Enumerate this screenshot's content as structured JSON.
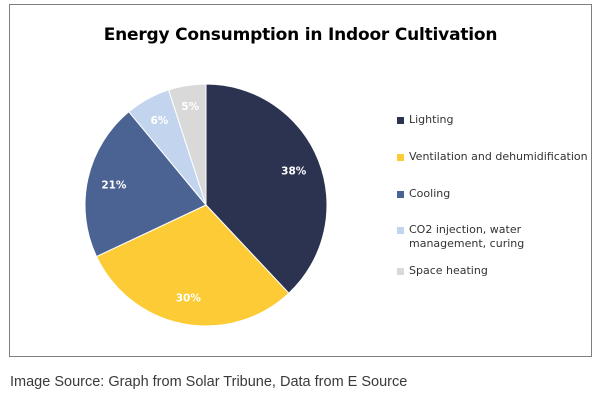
{
  "chart_data": {
    "type": "pie",
    "title": "Energy Consumption in Indoor Cultivation",
    "slices": [
      {
        "label": "Lighting",
        "value": 38,
        "display": "38%",
        "color": "#2c3350"
      },
      {
        "label": "Ventilation and dehumidification",
        "value": 30,
        "display": "30%",
        "color": "#fccb36"
      },
      {
        "label": "Cooling",
        "value": 21,
        "display": "21%",
        "color": "#4b6393"
      },
      {
        "label": "CO2 injection, water management, curing",
        "value": 6,
        "display": "6%",
        "color": "#c3d5ee"
      },
      {
        "label": "Space heating",
        "value": 5,
        "display": "5%",
        "color": "#d9d9d9"
      }
    ],
    "legend_position": "right"
  },
  "source_text": "Image Source: Graph from Solar Tribune, Data from E Source"
}
